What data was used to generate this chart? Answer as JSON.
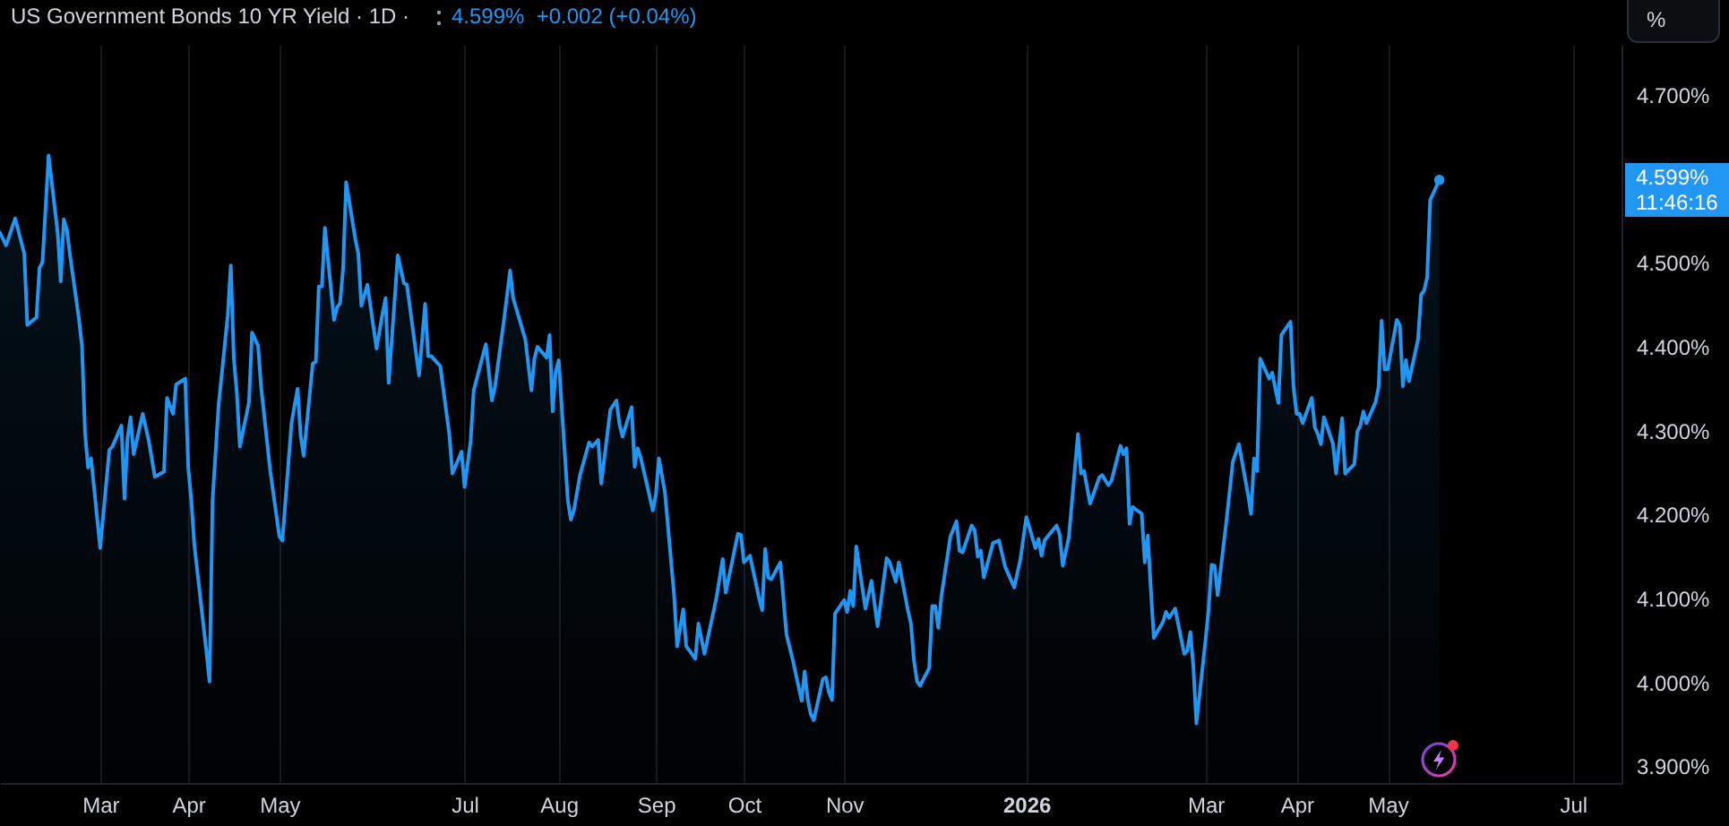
{
  "chart_data": {
    "type": "area",
    "title": "US Government Bonds 10 YR Yield · 1D ·",
    "subtitle": "4.599%  +0.002 (+0.04%)",
    "annotations": [
      "4.599%",
      "11:46:16",
      "%"
    ],
    "color": "#2196f3",
    "grid": "x",
    "xlim": [
      "2025-01-29",
      "2026-07-17"
    ],
    "xticks": [
      {
        "value": "2025-03-03",
        "label": "Mar"
      },
      {
        "value": "2025-04-01",
        "label": "Apr"
      },
      {
        "value": "2025-05-01",
        "label": "May"
      },
      {
        "value": "2025-07-01",
        "label": "Jul"
      },
      {
        "value": "2025-08-01",
        "label": "Aug"
      },
      {
        "value": "2025-09-02",
        "label": "Sep"
      },
      {
        "value": "2025-10-01",
        "label": "Oct"
      },
      {
        "value": "2025-11-03",
        "label": "Nov"
      },
      {
        "value": "2026-01-02",
        "label": "2026"
      },
      {
        "value": "2026-03-02",
        "label": "Mar"
      },
      {
        "value": "2026-04-01",
        "label": "Apr"
      },
      {
        "value": "2026-05-01",
        "label": "May"
      },
      {
        "value": "2026-07-01",
        "label": "Jul"
      }
    ],
    "ylim": [
      3.88,
      4.76
    ],
    "yticks": [
      {
        "value": 4.7,
        "label": "4.700%"
      },
      {
        "value": 4.5,
        "label": "4.500%"
      },
      {
        "value": 4.4,
        "label": "4.400%"
      },
      {
        "value": 4.3,
        "label": "4.300%"
      },
      {
        "value": 4.2,
        "label": "4.200%"
      },
      {
        "value": 4.1,
        "label": "4.100%"
      },
      {
        "value": 4.0,
        "label": "4.000%"
      },
      {
        "value": 3.9,
        "label": "3.900%"
      }
    ],
    "x": [
      "2025-01-29",
      "2025-01-31",
      "2025-02-03",
      "2025-02-06",
      "2025-02-07",
      "2025-02-10",
      "2025-02-11",
      "2025-02-12",
      "2025-02-14",
      "2025-02-17",
      "2025-02-18",
      "2025-02-19",
      "2025-02-20",
      "2025-02-21",
      "2025-02-24",
      "2025-02-25",
      "2025-02-26",
      "2025-02-27",
      "2025-02-28",
      "2025-03-03",
      "2025-03-06",
      "2025-03-07",
      "2025-03-10",
      "2025-03-11",
      "2025-03-12",
      "2025-03-13",
      "2025-03-14",
      "2025-03-17",
      "2025-03-19",
      "2025-03-21",
      "2025-03-24",
      "2025-03-25",
      "2025-03-27",
      "2025-03-28",
      "2025-03-31",
      "2025-04-01",
      "2025-04-02",
      "2025-04-03",
      "2025-04-04",
      "2025-04-07",
      "2025-04-08",
      "2025-04-09",
      "2025-04-11",
      "2025-04-14",
      "2025-04-15",
      "2025-04-16",
      "2025-04-17",
      "2025-04-18",
      "2025-04-21",
      "2025-04-22",
      "2025-04-24",
      "2025-04-25",
      "2025-04-28",
      "2025-05-01",
      "2025-05-02",
      "2025-05-05",
      "2025-05-07",
      "2025-05-08",
      "2025-05-09",
      "2025-05-12",
      "2025-05-13",
      "2025-05-14",
      "2025-05-15",
      "2025-05-16",
      "2025-05-19",
      "2025-05-20",
      "2025-05-21",
      "2025-05-22",
      "2025-05-23",
      "2025-05-26",
      "2025-05-27",
      "2025-05-28",
      "2025-05-30",
      "2025-06-02",
      "2025-06-04",
      "2025-06-05",
      "2025-06-06",
      "2025-06-09",
      "2025-06-11",
      "2025-06-12",
      "2025-06-16",
      "2025-06-18",
      "2025-06-19",
      "2025-06-20",
      "2025-06-23",
      "2025-06-26",
      "2025-06-27",
      "2025-06-30",
      "2025-07-01",
      "2025-07-03",
      "2025-07-04",
      "2025-07-08",
      "2025-07-10",
      "2025-07-11",
      "2025-07-14",
      "2025-07-16",
      "2025-07-17",
      "2025-07-21",
      "2025-07-23",
      "2025-07-24",
      "2025-07-25",
      "2025-07-28",
      "2025-07-29",
      "2025-07-30",
      "2025-07-31",
      "2025-08-01",
      "2025-08-04",
      "2025-08-05",
      "2025-08-06",
      "2025-08-08",
      "2025-08-11",
      "2025-08-12",
      "2025-08-14",
      "2025-08-15",
      "2025-08-18",
      "2025-08-20",
      "2025-08-21",
      "2025-08-22",
      "2025-08-25",
      "2025-08-26",
      "2025-08-27",
      "2025-08-28",
      "2025-09-01",
      "2025-09-02",
      "2025-09-03",
      "2025-09-05",
      "2025-09-08",
      "2025-09-09",
      "2025-09-11",
      "2025-09-12",
      "2025-09-15",
      "2025-09-16",
      "2025-09-18",
      "2025-09-22",
      "2025-09-24",
      "2025-09-25",
      "2025-09-29",
      "2025-09-30",
      "2025-10-01",
      "2025-10-03",
      "2025-10-06",
      "2025-10-07",
      "2025-10-08",
      "2025-10-09",
      "2025-10-10",
      "2025-10-13",
      "2025-10-15",
      "2025-10-17",
      "2025-10-20",
      "2025-10-21",
      "2025-10-22",
      "2025-10-23",
      "2025-10-24",
      "2025-10-27",
      "2025-10-28",
      "2025-10-29",
      "2025-10-30",
      "2025-10-31",
      "2025-11-03",
      "2025-11-04",
      "2025-11-05",
      "2025-11-06",
      "2025-11-07",
      "2025-11-10",
      "2025-11-11",
      "2025-11-12",
      "2025-11-14",
      "2025-11-17",
      "2025-11-18",
      "2025-11-20",
      "2025-11-21",
      "2025-11-24",
      "2025-11-25",
      "2025-11-26",
      "2025-11-27",
      "2025-11-28",
      "2025-12-01",
      "2025-12-02",
      "2025-12-03",
      "2025-12-04",
      "2025-12-05",
      "2025-12-08",
      "2025-12-10",
      "2025-12-11",
      "2025-12-12",
      "2025-12-15",
      "2025-12-16",
      "2025-12-17",
      "2025-12-18",
      "2025-12-19",
      "2025-12-22",
      "2025-12-24",
      "2025-12-26",
      "2025-12-29",
      "2025-12-31",
      "2026-01-02",
      "2026-01-05",
      "2026-01-06",
      "2026-01-07",
      "2026-01-08",
      "2026-01-09",
      "2026-01-12",
      "2026-01-13",
      "2026-01-14",
      "2026-01-16",
      "2026-01-19",
      "2026-01-20",
      "2026-01-21",
      "2026-01-23",
      "2026-01-26",
      "2026-01-27",
      "2026-01-29",
      "2026-01-30",
      "2026-02-02",
      "2026-02-03",
      "2026-02-04",
      "2026-02-05",
      "2026-02-06",
      "2026-02-09",
      "2026-02-10",
      "2026-02-11",
      "2026-02-12",
      "2026-02-13",
      "2026-02-16",
      "2026-02-17",
      "2026-02-18",
      "2026-02-20",
      "2026-02-23",
      "2026-02-24",
      "2026-02-25",
      "2026-02-26",
      "2026-02-27",
      "2026-03-02",
      "2026-03-03",
      "2026-03-04",
      "2026-03-05",
      "2026-03-06",
      "2026-03-09",
      "2026-03-11",
      "2026-03-13",
      "2026-03-16",
      "2026-03-17",
      "2026-03-18",
      "2026-03-19",
      "2026-03-20",
      "2026-03-23",
      "2026-03-24",
      "2026-03-25",
      "2026-03-26",
      "2026-03-27",
      "2026-03-30",
      "2026-03-31",
      "2026-04-01",
      "2026-04-02",
      "2026-04-03",
      "2026-04-06",
      "2026-04-07",
      "2026-04-08",
      "2026-04-09",
      "2026-04-10",
      "2026-04-13",
      "2026-04-14",
      "2026-04-16",
      "2026-04-17",
      "2026-04-20",
      "2026-04-21",
      "2026-04-22",
      "2026-04-23",
      "2026-04-24",
      "2026-04-27",
      "2026-04-28",
      "2026-04-29",
      "2026-04-30",
      "2026-05-01",
      "2026-05-04",
      "2026-05-05",
      "2026-05-06",
      "2026-05-07",
      "2026-05-08",
      "2026-05-11",
      "2026-05-12",
      "2026-05-13",
      "2026-05-14",
      "2026-05-15",
      "2026-05-18"
    ],
    "values": [
      4.536,
      4.521,
      4.553,
      4.511,
      4.426,
      4.435,
      4.494,
      4.501,
      4.628,
      4.536,
      4.478,
      4.552,
      4.54,
      4.511,
      4.433,
      4.401,
      4.298,
      4.256,
      4.267,
      4.16,
      4.277,
      4.281,
      4.306,
      4.219,
      4.291,
      4.316,
      4.272,
      4.32,
      4.288,
      4.245,
      4.251,
      4.339,
      4.32,
      4.355,
      4.362,
      4.256,
      4.217,
      4.164,
      4.132,
      4.036,
      4.001,
      4.217,
      4.331,
      4.437,
      4.497,
      4.387,
      4.345,
      4.281,
      4.334,
      4.417,
      4.401,
      4.352,
      4.252,
      4.174,
      4.169,
      4.309,
      4.35,
      4.295,
      4.27,
      4.38,
      4.382,
      4.472,
      4.472,
      4.542,
      4.432,
      4.447,
      4.452,
      4.494,
      4.596,
      4.529,
      4.511,
      4.449,
      4.474,
      4.398,
      4.44,
      4.458,
      4.357,
      4.509,
      4.476,
      4.474,
      4.366,
      4.451,
      4.389,
      4.389,
      4.377,
      4.295,
      4.249,
      4.275,
      4.233,
      4.288,
      4.348,
      4.403,
      4.336,
      4.352,
      4.433,
      4.491,
      4.458,
      4.409,
      4.348,
      4.386,
      4.4,
      4.387,
      4.414,
      4.323,
      4.37,
      4.384,
      4.217,
      4.194,
      4.205,
      4.247,
      4.286,
      4.281,
      4.289,
      4.237,
      4.325,
      4.336,
      4.308,
      4.293,
      4.328,
      4.257,
      4.279,
      4.268,
      4.205,
      4.224,
      4.267,
      4.226,
      4.104,
      4.043,
      4.087,
      4.043,
      4.028,
      4.07,
      4.034,
      4.102,
      4.147,
      4.107,
      4.177,
      4.176,
      4.143,
      4.151,
      4.1,
      4.086,
      4.159,
      4.125,
      4.123,
      4.143,
      4.057,
      4.028,
      3.978,
      4.013,
      3.98,
      3.962,
      3.955,
      4.004,
      4.006,
      3.988,
      3.979,
      4.082,
      4.098,
      4.084,
      4.109,
      4.091,
      4.162,
      4.088,
      4.104,
      4.121,
      4.067,
      4.148,
      4.143,
      4.12,
      4.143,
      4.086,
      4.07,
      4.026,
      4.001,
      3.996,
      4.017,
      4.091,
      4.091,
      4.065,
      4.102,
      4.174,
      4.192,
      4.157,
      4.155,
      4.187,
      4.181,
      4.15,
      4.157,
      4.125,
      4.166,
      4.169,
      4.138,
      4.113,
      4.146,
      4.197,
      4.16,
      4.171,
      4.151,
      4.169,
      4.174,
      4.187,
      4.176,
      4.139,
      4.173,
      4.296,
      4.249,
      4.252,
      4.213,
      4.244,
      4.247,
      4.235,
      4.24,
      4.282,
      4.272,
      4.279,
      4.189,
      4.209,
      4.201,
      4.143,
      4.175,
      4.111,
      4.053,
      4.072,
      4.084,
      4.077,
      4.088,
      4.034,
      4.038,
      4.06,
      4.019,
      3.951,
      4.05,
      4.086,
      4.14,
      4.139,
      4.104,
      4.196,
      4.263,
      4.284,
      4.224,
      4.201,
      4.267,
      4.252,
      4.386,
      4.362,
      4.369,
      4.35,
      4.333,
      4.414,
      4.43,
      4.352,
      4.32,
      4.32,
      4.309,
      4.339,
      4.304,
      4.296,
      4.284,
      4.316,
      4.284,
      4.249,
      4.315,
      4.249,
      4.26,
      4.299,
      4.306,
      4.323,
      4.309,
      4.334,
      4.352,
      4.431,
      4.373,
      4.373,
      4.432,
      4.426,
      4.353,
      4.384,
      4.359,
      4.409,
      4.462,
      4.467,
      4.483,
      4.575,
      4.599
    ]
  }
}
